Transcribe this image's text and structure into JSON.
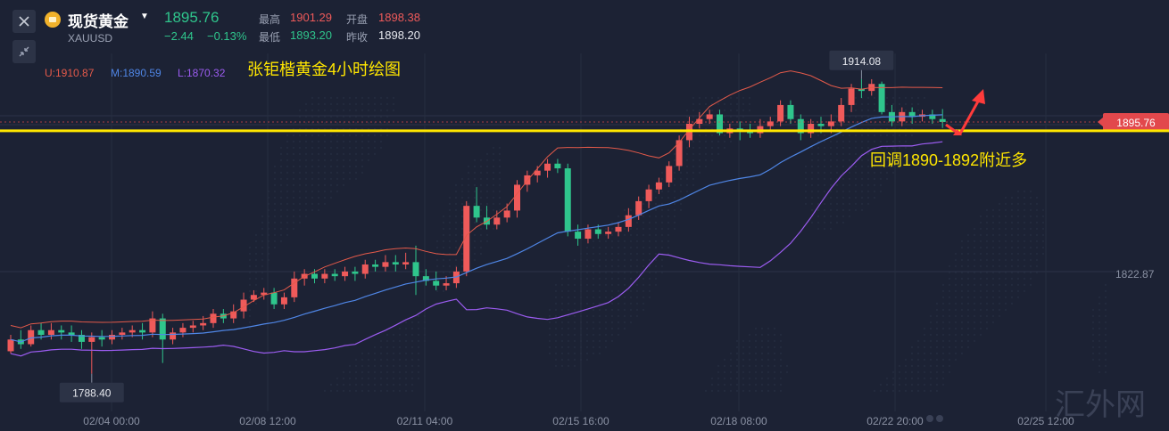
{
  "header": {
    "name": "现货黄金",
    "symbol": "XAUUSD",
    "price": "1895.76",
    "change": "−2.44",
    "change_pct": "−0.13%",
    "high_label": "最高",
    "high_value": "1901.29",
    "open_label": "开盘",
    "open_value": "1898.38",
    "low_label": "最低",
    "low_value": "1893.20",
    "prev_close_label": "昨收",
    "prev_close_value": "1898.20"
  },
  "indicator": {
    "upper": "U:1910.87",
    "middle": "M:1890.59",
    "lower": "L:1870.32"
  },
  "colors": {
    "background": "#1c2234",
    "up": "#ef5a5a",
    "down": "#2fc58c",
    "upper_band": "#e45a4a",
    "middle_band": "#4f86e6",
    "lower_band": "#9b5cf0",
    "annotation": "#ffe600",
    "price_tag": "#e2484c"
  },
  "chart_data": {
    "type": "candlestick",
    "title": "张钜楷黄金4小时绘图",
    "annotation": "回调1890-1892附近多",
    "x_tick_labels": [
      "02/04 00:00",
      "02/08 12:00",
      "02/11 04:00",
      "02/15 16:00",
      "02/18 08:00",
      "02/22 20:00",
      "02/25 12:00"
    ],
    "y_tick_labels": [
      "1822.87"
    ],
    "ylim": [
      1775,
      1925
    ],
    "last_price_label": "1895.76",
    "horizontal_line": 1892,
    "max_label": "1914.08",
    "min_label": "1788.40",
    "candles": [
      [
        1798,
        1803,
        1797,
        1805
      ],
      [
        1803,
        1801,
        1799,
        1807
      ],
      [
        1801,
        1807,
        1800,
        1809
      ],
      [
        1807,
        1805,
        1803,
        1810
      ],
      [
        1805,
        1807,
        1803,
        1810
      ],
      [
        1807,
        1806,
        1803,
        1809
      ],
      [
        1806,
        1805,
        1802,
        1809
      ],
      [
        1805,
        1802,
        1799,
        1807
      ],
      [
        1802,
        1804,
        1788.4,
        1806
      ],
      [
        1804,
        1803,
        1800,
        1807
      ],
      [
        1803,
        1805,
        1801,
        1807
      ],
      [
        1805,
        1806,
        1803,
        1808
      ],
      [
        1806,
        1807,
        1804,
        1809
      ],
      [
        1807,
        1806,
        1803,
        1810
      ],
      [
        1806,
        1812,
        1804,
        1815
      ],
      [
        1812,
        1803,
        1793,
        1814
      ],
      [
        1803,
        1806,
        1801,
        1808
      ],
      [
        1806,
        1808,
        1804,
        1810
      ],
      [
        1808,
        1809,
        1806,
        1811
      ],
      [
        1809,
        1810,
        1807,
        1813
      ],
      [
        1810,
        1814,
        1808,
        1816
      ],
      [
        1814,
        1812,
        1810,
        1816
      ],
      [
        1812,
        1815,
        1810,
        1818
      ],
      [
        1815,
        1820,
        1812,
        1823
      ],
      [
        1820,
        1822,
        1819,
        1824
      ],
      [
        1822,
        1823,
        1820,
        1825
      ],
      [
        1823,
        1818,
        1816,
        1825
      ],
      [
        1818,
        1821,
        1816,
        1823
      ],
      [
        1821,
        1829,
        1819,
        1832
      ],
      [
        1829,
        1831,
        1826,
        1833
      ],
      [
        1831,
        1829,
        1827,
        1833
      ],
      [
        1829,
        1831,
        1827,
        1833
      ],
      [
        1831,
        1830,
        1828,
        1833
      ],
      [
        1830,
        1832,
        1828,
        1834
      ],
      [
        1832,
        1831,
        1828,
        1834
      ],
      [
        1831,
        1835,
        1829,
        1837
      ],
      [
        1835,
        1834,
        1832,
        1837
      ],
      [
        1834,
        1836,
        1832,
        1839
      ],
      [
        1836,
        1835,
        1832,
        1839
      ],
      [
        1835,
        1836,
        1833,
        1840
      ],
      [
        1836,
        1830,
        1822,
        1843
      ],
      [
        1830,
        1828,
        1826,
        1833
      ],
      [
        1828,
        1826,
        1824,
        1832
      ],
      [
        1826,
        1827,
        1824,
        1830
      ],
      [
        1827,
        1832,
        1825,
        1834
      ],
      [
        1832,
        1860,
        1830,
        1862
      ],
      [
        1860,
        1855,
        1853,
        1868
      ],
      [
        1855,
        1852,
        1850,
        1860
      ],
      [
        1852,
        1855,
        1850,
        1858
      ],
      [
        1855,
        1858,
        1853,
        1861
      ],
      [
        1858,
        1869,
        1855,
        1871
      ],
      [
        1869,
        1873,
        1866,
        1875
      ],
      [
        1873,
        1875,
        1870,
        1877
      ],
      [
        1875,
        1878,
        1872,
        1880
      ],
      [
        1878,
        1876,
        1874,
        1880
      ],
      [
        1876,
        1849,
        1847,
        1878
      ],
      [
        1849,
        1846,
        1843,
        1852
      ],
      [
        1846,
        1850,
        1844,
        1852
      ],
      [
        1850,
        1848,
        1846,
        1852
      ],
      [
        1848,
        1849,
        1846,
        1851
      ],
      [
        1849,
        1851,
        1847,
        1853
      ],
      [
        1851,
        1856,
        1849,
        1859
      ],
      [
        1856,
        1862,
        1854,
        1864
      ],
      [
        1862,
        1867,
        1859,
        1869
      ],
      [
        1867,
        1870,
        1865,
        1872
      ],
      [
        1870,
        1877,
        1868,
        1879
      ],
      [
        1877,
        1888,
        1875,
        1890
      ],
      [
        1888,
        1895,
        1885,
        1898
      ],
      [
        1895,
        1897,
        1893,
        1900
      ],
      [
        1897,
        1899,
        1895,
        1901
      ],
      [
        1899,
        1891,
        1890,
        1901
      ],
      [
        1891,
        1893,
        1889,
        1895
      ],
      [
        1893,
        1892,
        1888,
        1896
      ],
      [
        1892,
        1891,
        1889,
        1895
      ],
      [
        1891,
        1894,
        1889,
        1897
      ],
      [
        1894,
        1896,
        1892,
        1898
      ],
      [
        1896,
        1903,
        1894,
        1905
      ],
      [
        1903,
        1897,
        1895,
        1905
      ],
      [
        1897,
        1891,
        1888,
        1899
      ],
      [
        1891,
        1895,
        1889,
        1897
      ],
      [
        1895,
        1894,
        1891,
        1898
      ],
      [
        1894,
        1896,
        1891,
        1899
      ],
      [
        1896,
        1903,
        1894,
        1906
      ],
      [
        1903,
        1910,
        1900,
        1912
      ],
      [
        1910,
        1909,
        1906,
        1914.08
      ],
      [
        1909,
        1912,
        1907,
        1914
      ],
      [
        1912,
        1900,
        1899,
        1913
      ],
      [
        1900,
        1896,
        1894,
        1903
      ],
      [
        1896,
        1900,
        1894,
        1902
      ],
      [
        1900,
        1898,
        1895,
        1902
      ],
      [
        1898,
        1899,
        1896,
        1901
      ],
      [
        1899,
        1897,
        1895,
        1901
      ],
      [
        1897,
        1895.76,
        1893.2,
        1901.29
      ]
    ]
  },
  "watermark": "汇外网"
}
